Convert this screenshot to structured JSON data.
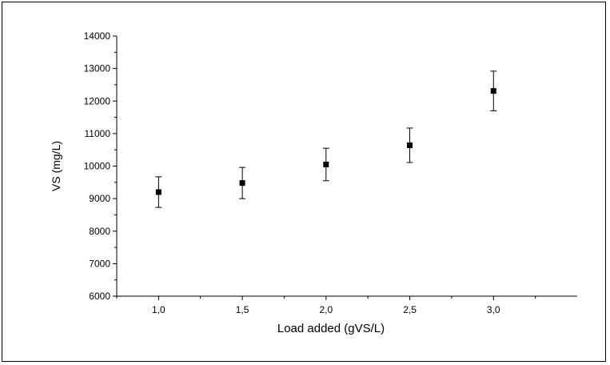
{
  "chart_data": {
    "type": "scatter",
    "title": "",
    "xlabel": "Load added (gVS/L)",
    "ylabel": "VS (mg/L)",
    "xlim": [
      0.75,
      3.5
    ],
    "ylim": [
      6000,
      14000
    ],
    "x_ticks": [
      1.0,
      1.5,
      2.0,
      2.5,
      3.0
    ],
    "x_tick_labels": [
      "1,0",
      "1,5",
      "2,0",
      "2,5",
      "3,0"
    ],
    "y_ticks": [
      6000,
      7000,
      8000,
      9000,
      10000,
      11000,
      12000,
      13000,
      14000
    ],
    "y_tick_labels": [
      "6000",
      "7000",
      "8000",
      "9000",
      "10000",
      "11000",
      "12000",
      "13000",
      "14000"
    ],
    "grid": false,
    "legend": "none",
    "marker": "square",
    "marker_color": "#000000",
    "series": [
      {
        "x": [
          1.0,
          1.5,
          2.0,
          2.5,
          3.0
        ],
        "y": [
          9200,
          9480,
          10050,
          10640,
          12310
        ],
        "y_error": [
          470,
          480,
          500,
          530,
          610
        ]
      }
    ]
  }
}
